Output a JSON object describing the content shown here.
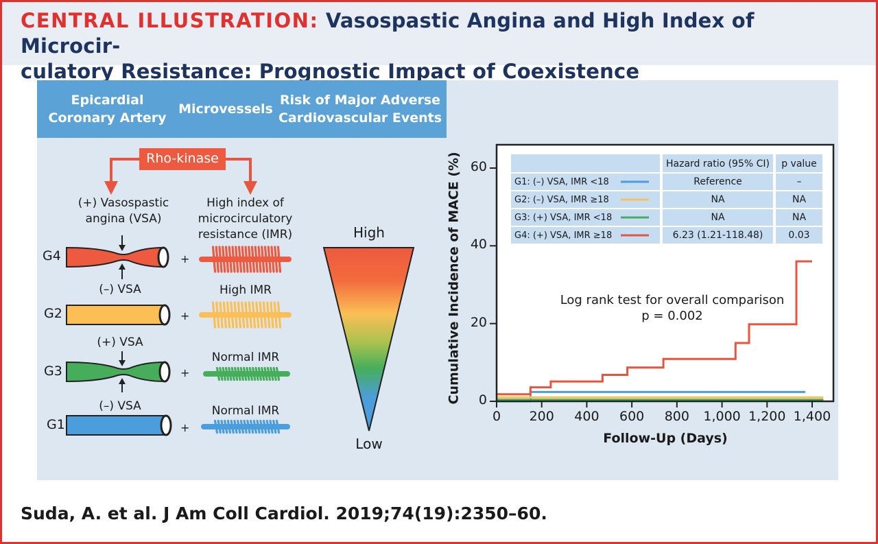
{
  "header": {
    "label": "CENTRAL ILLUSTRATION:",
    "title_line1": " Vasospastic Angina and High Index of Microcir-",
    "title_line2": "culatory Resistance: Prognostic Impact of Coexistence"
  },
  "columns": {
    "col1_line1": "Epicardial",
    "col1_line2": "Coronary Artery",
    "col2": "Microvessels",
    "col3_line1": "Risk of Major Adverse",
    "col3_line2": "Cardiovascular Events"
  },
  "mechanism": {
    "rho_kinase": "Rho-kinase",
    "vsa_line1": "(+) Vasospastic",
    "vsa_line2": "angina (VSA)",
    "imr_line1": "High index of",
    "imr_line2": "microcirculatory",
    "imr_line3": "resistance (IMR)"
  },
  "groups": [
    {
      "name": "G4",
      "vsa": "",
      "imr": "",
      "artery_color": "#ee5a3f",
      "micro_color": "#ee5a3f"
    },
    {
      "name": "G2",
      "vsa": "(–) VSA",
      "imr": "High IMR",
      "artery_color": "#fbbf56",
      "micro_color": "#fbbf56"
    },
    {
      "name": "G3",
      "vsa": "(+) VSA",
      "imr": "Normal IMR",
      "artery_color": "#46ae5b",
      "micro_color": "#46ae5b"
    },
    {
      "name": "G1",
      "vsa": "(–) VSA",
      "imr": "Normal IMR",
      "artery_color": "#4c9ddc",
      "micro_color": "#4c9ddc"
    }
  ],
  "plus_sign": "+",
  "risk": {
    "high": "High",
    "low": "Low"
  },
  "chart_data": {
    "type": "line",
    "xlabel": "Follow-Up (Days)",
    "ylabel": "Cumulative Incidence of MACE (%)",
    "xlim": [
      0,
      1450
    ],
    "ylim": [
      0,
      65
    ],
    "xticks": [
      "0",
      "200",
      "400",
      "600",
      "800",
      "1,000",
      "1,200",
      "1,400"
    ],
    "yticks": [
      "0",
      "20",
      "40",
      "60"
    ],
    "annotation_line1": "Log rank test for overall comparison",
    "annotation_line2": "p = 0.002",
    "table_headers": [
      "",
      "Hazard ratio (95% CI)",
      "p value"
    ],
    "series": [
      {
        "name": "G1: (–) VSA, IMR <18",
        "color": "#4c9ddc",
        "hr": "Reference",
        "p": "–",
        "x": [
          0,
          150,
          150,
          1370
        ],
        "y": [
          0,
          0,
          2.4,
          2.4
        ]
      },
      {
        "name": "G2: (–) VSA, IMR ≥18",
        "color": "#fbbf56",
        "hr": "NA",
        "p": "NA",
        "x": [
          0,
          1450
        ],
        "y": [
          1.0,
          1.0
        ]
      },
      {
        "name": "G3: (+) VSA, IMR <18",
        "color": "#46ae5b",
        "hr": "NA",
        "p": "NA",
        "x": [
          0,
          1450
        ],
        "y": [
          0.4,
          0.4
        ]
      },
      {
        "name": "G4: (+) VSA, IMR ≥18",
        "color": "#e8553f",
        "hr": "6.23 (1.21-118.48)",
        "p": "0.03",
        "x": [
          0,
          150,
          150,
          240,
          240,
          470,
          470,
          580,
          580,
          740,
          740,
          1060,
          1060,
          1120,
          1120,
          1330,
          1330,
          1400
        ],
        "y": [
          1.8,
          1.8,
          3.6,
          3.6,
          5.1,
          5.1,
          6.8,
          6.8,
          8.7,
          8.7,
          10.9,
          10.9,
          15.0,
          15.0,
          19.8,
          19.8,
          36.0,
          36.0
        ]
      }
    ]
  },
  "citation": "Suda, A. et al. J Am Coll Cardiol. 2019;74(19):2350–60."
}
